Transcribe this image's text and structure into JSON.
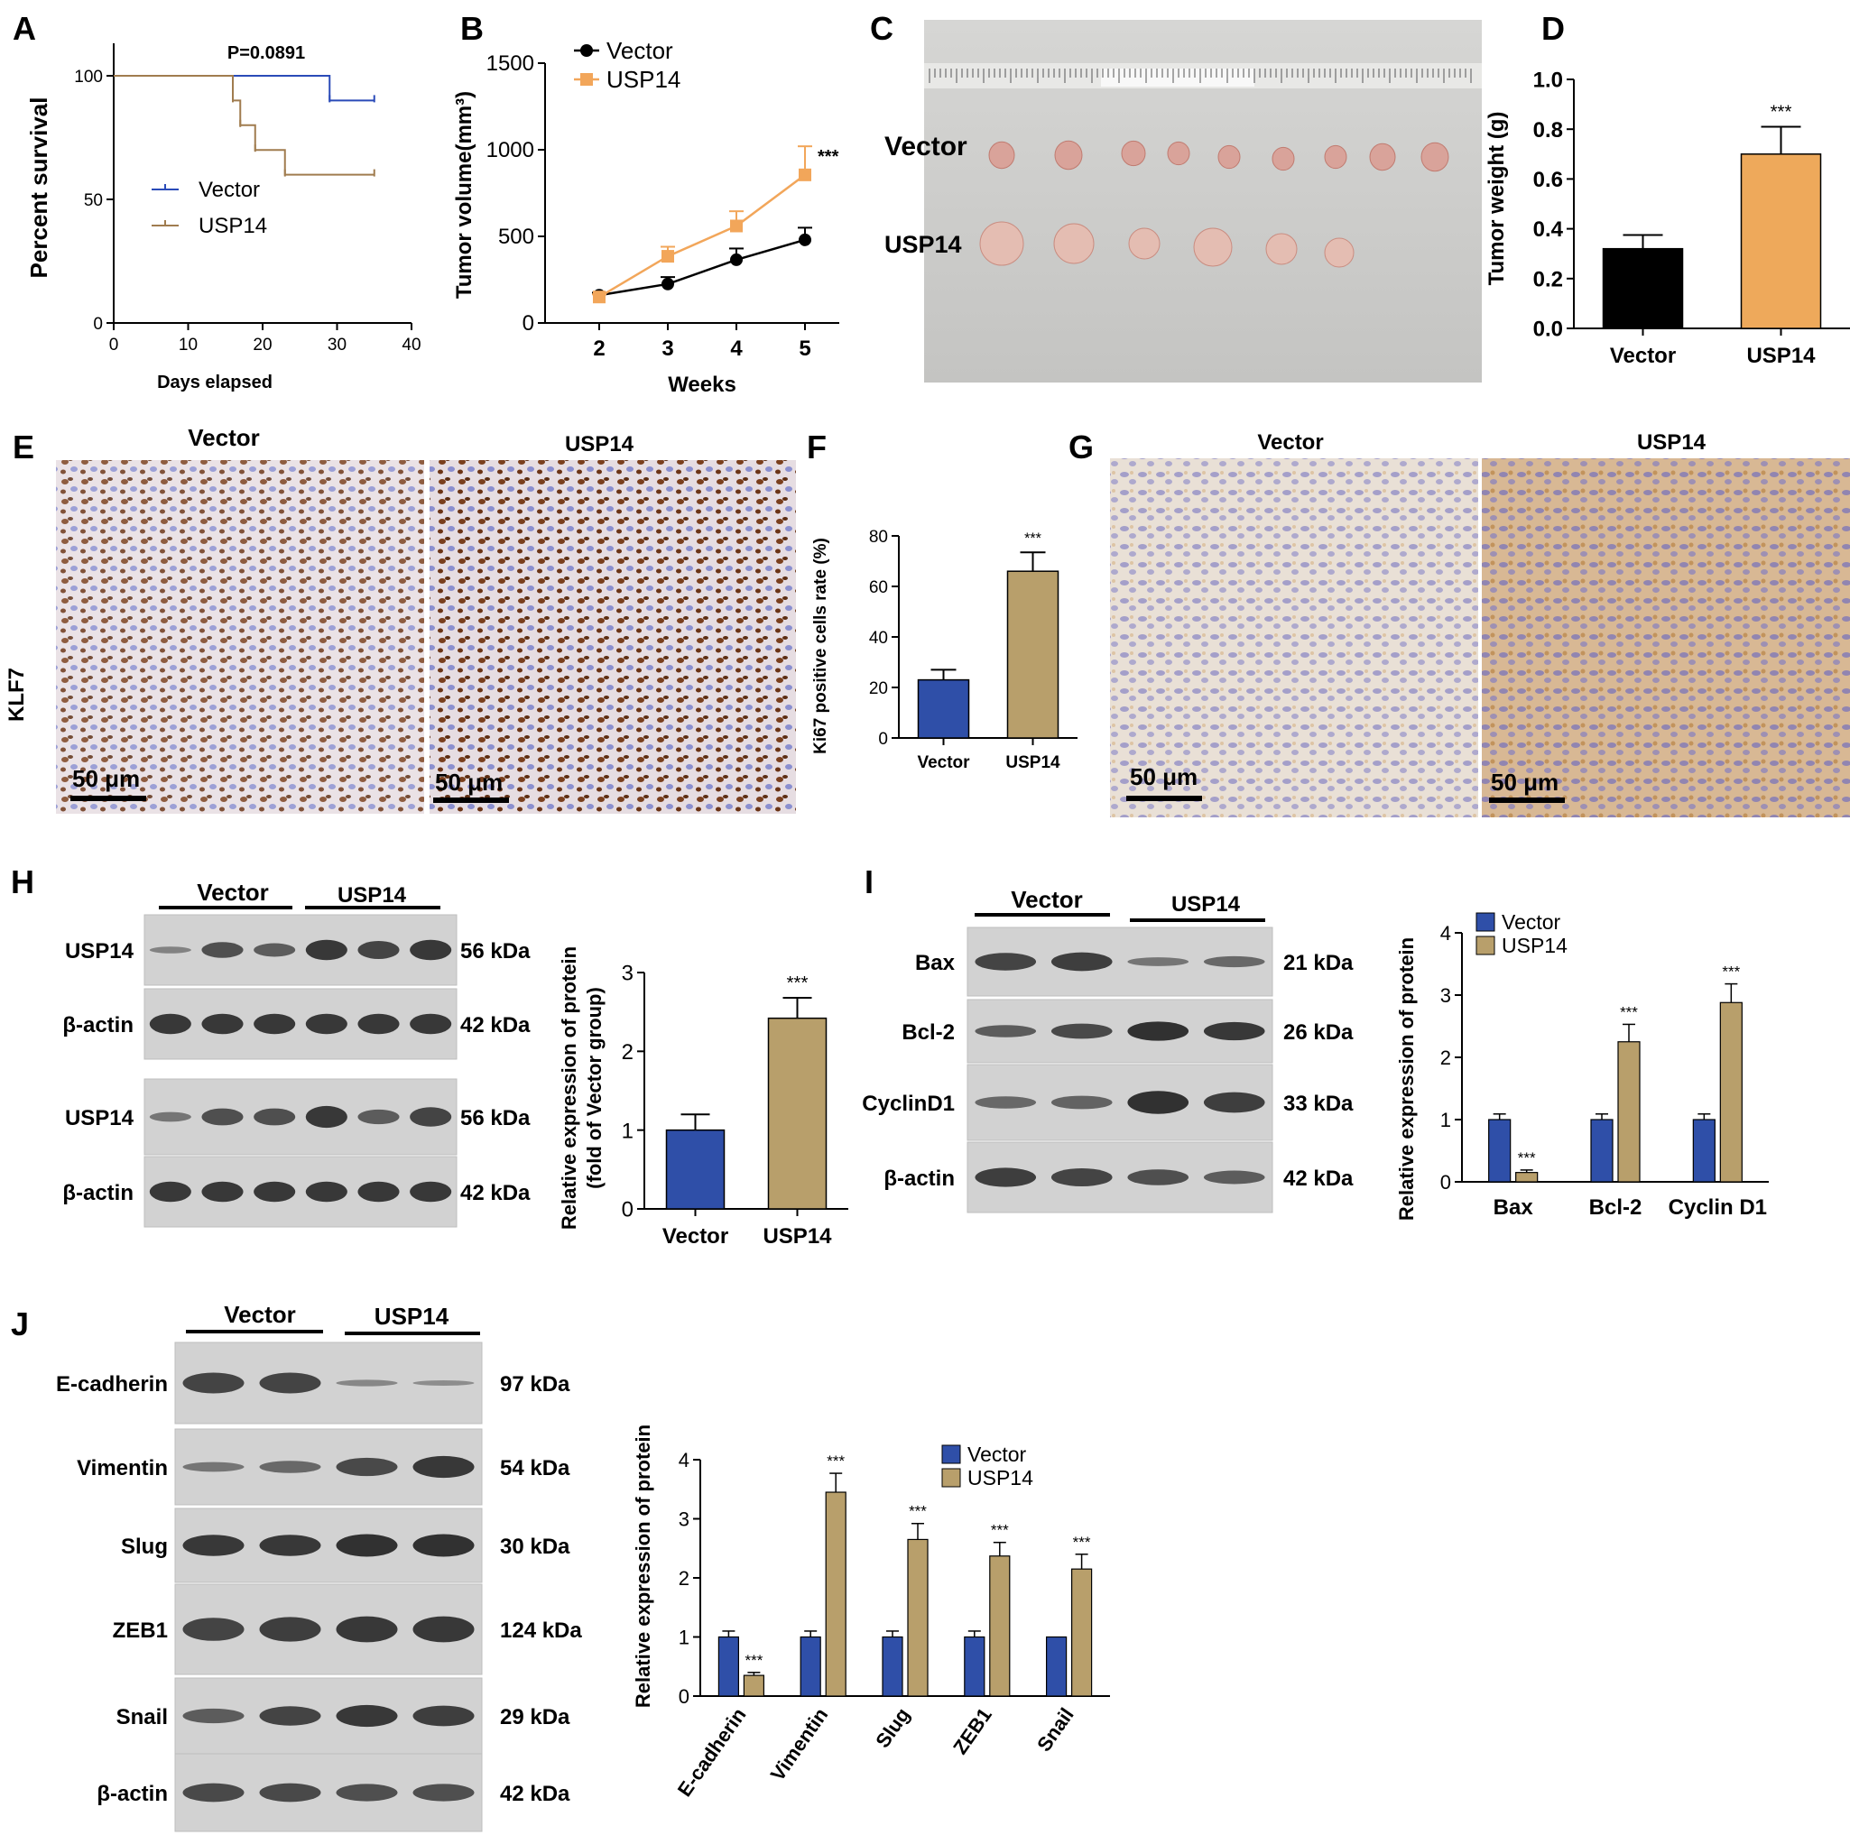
{
  "colors": {
    "vector_blue": "#2f4fa8",
    "usp14_tan": "#b89f6b",
    "usp14_orange_line": "#f2a65a",
    "bar_black": "#000000",
    "bar_orange": "#eea95b",
    "survival_blue": "#2a4bb8",
    "survival_brown": "#a07c4f"
  },
  "panels": {
    "A": {
      "letter": "A",
      "title": "P=0.0891"
    },
    "B": {
      "letter": "B"
    },
    "C": {
      "letter": "C",
      "row_vector": "Vector",
      "row_usp14": "USP14"
    },
    "D": {
      "letter": "D"
    },
    "E": {
      "letter": "E",
      "col_vector": "Vector",
      "col_usp14": "USP14",
      "row_label": "KLF7",
      "scale": "50 μm"
    },
    "F": {
      "letter": "F"
    },
    "G": {
      "letter": "G",
      "col_vector": "Vector",
      "col_usp14": "USP14",
      "scale": "50 μm"
    },
    "H": {
      "letter": "H",
      "group_vector": "Vector",
      "group_usp14": "USP14",
      "bands": [
        {
          "label": "USP14",
          "kda": "56 kDa"
        },
        {
          "label": "β-actin",
          "kda": "42 kDa"
        },
        {
          "label": "USP14",
          "kda": "56 kDa"
        },
        {
          "label": "β-actin",
          "kda": "42 kDa"
        }
      ]
    },
    "I": {
      "letter": "I",
      "group_vector": "Vector",
      "group_usp14": "USP14",
      "bands": [
        {
          "label": "Bax",
          "kda": "21 kDa"
        },
        {
          "label": "Bcl-2",
          "kda": "26 kDa"
        },
        {
          "label": "CyclinD1",
          "kda": "33 kDa"
        },
        {
          "label": "β-actin",
          "kda": "42 kDa"
        }
      ]
    },
    "J": {
      "letter": "J",
      "group_vector": "Vector",
      "group_usp14": "USP14",
      "bands": [
        {
          "label": "E-cadherin",
          "kda": "97 kDa"
        },
        {
          "label": "Vimentin",
          "kda": "54 kDa"
        },
        {
          "label": "Slug",
          "kda": "30 kDa"
        },
        {
          "label": "ZEB1",
          "kda": "124 kDa"
        },
        {
          "label": "Snail",
          "kda": "29 kDa"
        },
        {
          "label": "β-actin",
          "kda": "42 kDa"
        }
      ]
    }
  },
  "chart_data": [
    {
      "panel": "A",
      "type": "line",
      "title": "P=0.0891",
      "xlabel": "Days elapsed",
      "ylabel": "Percent survival",
      "xlim": [
        0,
        40
      ],
      "ylim": [
        0,
        100
      ],
      "xticks": [
        0,
        10,
        20,
        30,
        40
      ],
      "yticks": [
        0,
        50,
        100
      ],
      "series": [
        {
          "name": "Vector",
          "step": true,
          "x": [
            0,
            29,
            35
          ],
          "y": [
            100,
            90,
            90
          ]
        },
        {
          "name": "USP14",
          "step": true,
          "x": [
            0,
            16,
            17,
            19,
            23,
            35
          ],
          "y": [
            100,
            90,
            80,
            70,
            60,
            60
          ]
        }
      ]
    },
    {
      "panel": "B",
      "type": "line",
      "xlabel": "Weeks",
      "ylabel": "Tumor volume(mm³)",
      "xlim": [
        2,
        5
      ],
      "ylim": [
        0,
        1500
      ],
      "xticks": [
        2,
        3,
        4,
        5
      ],
      "yticks": [
        0,
        500,
        1000,
        1500
      ],
      "annotation": "***",
      "series": [
        {
          "name": "Vector",
          "x": [
            2,
            3,
            4,
            5
          ],
          "y": [
            160,
            225,
            365,
            480
          ],
          "err": [
            15,
            40,
            65,
            70
          ]
        },
        {
          "name": "USP14",
          "x": [
            2,
            3,
            4,
            5
          ],
          "y": [
            150,
            385,
            560,
            855
          ],
          "err": [
            15,
            55,
            85,
            165
          ]
        }
      ]
    },
    {
      "panel": "D",
      "type": "bar",
      "ylabel": "Tumor weight (g)",
      "ylim": [
        0,
        1.0
      ],
      "yticks": [
        "0.0",
        "0.2",
        "0.4",
        "0.6",
        "0.8",
        "1.0"
      ],
      "categories": [
        "Vector",
        "USP14"
      ],
      "values": [
        0.32,
        0.7
      ],
      "err": [
        0.055,
        0.11
      ],
      "annotations": [
        "",
        "***"
      ]
    },
    {
      "panel": "F",
      "type": "bar",
      "ylabel": "Ki67 positive cells rate (%)",
      "ylim": [
        0,
        80
      ],
      "yticks": [
        0,
        20,
        40,
        60,
        80
      ],
      "categories": [
        "Vector",
        "USP14"
      ],
      "values": [
        23,
        66
      ],
      "err": [
        4,
        7.5
      ],
      "annotations": [
        "",
        "***"
      ]
    },
    {
      "panel": "H",
      "type": "bar",
      "ylabel": "Relative expression of protein (fold of Vector group)",
      "ylim": [
        0,
        3
      ],
      "yticks": [
        0,
        1,
        2,
        3
      ],
      "categories": [
        "Vector",
        "USP14"
      ],
      "values": [
        1.0,
        2.42
      ],
      "err": [
        0.2,
        0.26
      ],
      "annotations": [
        "",
        "***"
      ]
    },
    {
      "panel": "I",
      "type": "bar",
      "ylabel": "Relative expression of protein",
      "ylim": [
        0,
        4
      ],
      "yticks": [
        0,
        1,
        2,
        3,
        4
      ],
      "categories": [
        "Bax",
        "Bcl-2",
        "Cyclin D1"
      ],
      "series": [
        {
          "name": "Vector",
          "values": [
            1.0,
            1.0,
            1.0
          ],
          "err": [
            0.09,
            0.09,
            0.09
          ],
          "annotations": [
            "",
            "",
            ""
          ]
        },
        {
          "name": "USP14",
          "values": [
            0.15,
            2.25,
            2.88
          ],
          "err": [
            0.04,
            0.28,
            0.3
          ],
          "annotations": [
            "***",
            "***",
            "***"
          ]
        }
      ]
    },
    {
      "panel": "J",
      "type": "bar",
      "ylabel": "Relative expression of protein",
      "ylim": [
        0,
        4
      ],
      "yticks": [
        0,
        1,
        2,
        3,
        4
      ],
      "categories": [
        "E-cadherin",
        "Vimentin",
        "Slug",
        "ZEB1",
        "Snail"
      ],
      "series": [
        {
          "name": "Vector",
          "values": [
            1.0,
            1.0,
            1.0,
            1.0,
            1.0
          ],
          "err": [
            0.1,
            0.1,
            0.1,
            0.1,
            0.0
          ],
          "annotations": [
            "",
            "",
            "",
            "",
            ""
          ]
        },
        {
          "name": "USP14",
          "values": [
            0.35,
            3.45,
            2.65,
            2.37,
            2.15
          ],
          "err": [
            0.05,
            0.32,
            0.27,
            0.23,
            0.25
          ],
          "annotations": [
            "***",
            "***",
            "***",
            "***",
            "***"
          ]
        }
      ]
    }
  ]
}
